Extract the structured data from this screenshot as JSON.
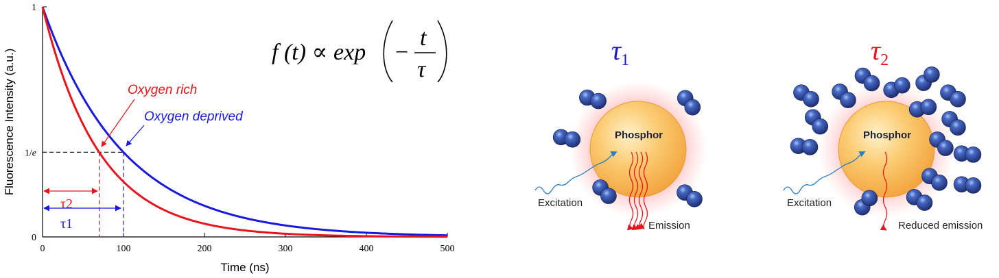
{
  "chart_data": {
    "type": "line",
    "xlabel": "Time (ns)",
    "ylabel": "Fluorescence Intensity (a.u.)",
    "xlim": [
      0,
      500
    ],
    "ylim": [
      0,
      1
    ],
    "x_ticks": [
      "0",
      "100",
      "200",
      "300",
      "400",
      "500"
    ],
    "y_ticks": [
      "0",
      "1/e",
      "1"
    ],
    "series": [
      {
        "name": "Oxygen rich",
        "color": "#e8141c",
        "tau": 70
      },
      {
        "name": "Oxygen deprived",
        "color": "#1818e0",
        "tau": 100
      }
    ],
    "annotations": {
      "tau2_label": "τ2",
      "tau1_label": "τ1",
      "formula": {
        "lhs": "f (t) ∝ exp",
        "minus": "−",
        "numerator": "t",
        "denominator": "τ"
      }
    }
  },
  "diagram": {
    "panel1": {
      "title_symbol": "τ",
      "title_sub": "1",
      "title_color": "#1a1acc",
      "core_label": "Phosphor",
      "excitation_label": "Excitation",
      "emission_label": "Emission"
    },
    "panel2": {
      "title_symbol": "τ",
      "title_sub": "2",
      "title_color": "#e8141c",
      "core_label": "Phosphor",
      "excitation_label": "Excitation",
      "emission_label": "Reduced emission"
    }
  },
  "colors": {
    "rich": "#e8141c",
    "deprived": "#1818e0",
    "molecule": "#2d3f8a",
    "excitation": "#2a7dbf",
    "phosphor_core": "#f6b04a"
  }
}
